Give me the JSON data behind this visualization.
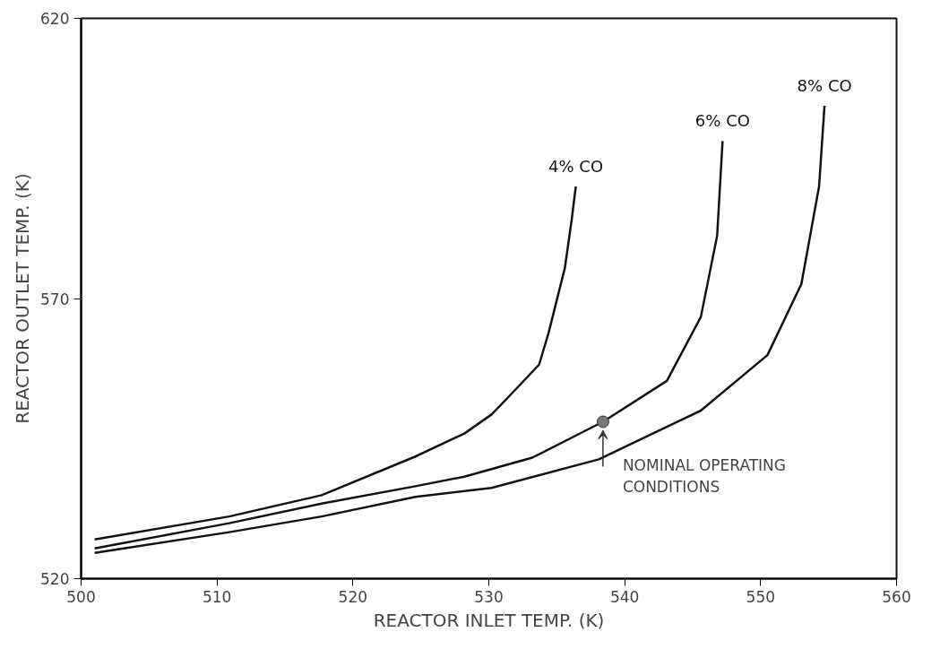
{
  "chart_data": {
    "type": "line",
    "xlabel": "REACTOR INLET TEMP. (K)",
    "ylabel": "REACTOR OUTLET TEMP. (K)",
    "xlim": [
      500,
      560
    ],
    "ylim": [
      520,
      620
    ],
    "xticks": [
      500,
      510,
      520,
      530,
      540,
      550,
      560
    ],
    "yticks": [
      520,
      570,
      620
    ],
    "grid": false,
    "marker": "none",
    "line_style": "solid",
    "series": [
      {
        "name": "4% CO",
        "color": "#111111",
        "x": [
          501,
          510.9,
          517.7,
          524.6,
          528.2,
          530.2,
          531.2,
          533.7,
          534.4,
          535.6,
          536.1,
          536.4
        ],
        "values": [
          527.0,
          531.1,
          534.9,
          541.8,
          545.9,
          549.3,
          551.8,
          558.2,
          563.9,
          575.5,
          584.1,
          590.0
        ]
      },
      {
        "name": "6% CO",
        "color": "#111111",
        "x": [
          501,
          510.9,
          517.7,
          524.6,
          528.2,
          533.2,
          538.4,
          543.1,
          545.6,
          546.8,
          547.2
        ],
        "values": [
          525.4,
          529.9,
          533.4,
          536.5,
          538.2,
          541.6,
          548.0,
          555.3,
          566.7,
          581.2,
          598.1
        ]
      },
      {
        "name": "8% CO",
        "color": "#111111",
        "x": [
          501,
          510.9,
          517.7,
          524.6,
          530.2,
          538.1,
          545.6,
          550.5,
          553.0,
          554.3,
          554.7
        ],
        "values": [
          524.6,
          528.3,
          531.1,
          534.6,
          536.2,
          541.3,
          550.0,
          559.9,
          572.6,
          590.0,
          604.4
        ]
      },
      {
        "type": "scatter",
        "marker": "circle",
        "color": "#777777",
        "x": [
          538.4
        ],
        "values": [
          548.0
        ]
      }
    ],
    "annotations": [
      {
        "text": "NOMINAL OPERATING\nCONDITIONS",
        "x": 538.4,
        "y": 548.0
      }
    ]
  }
}
